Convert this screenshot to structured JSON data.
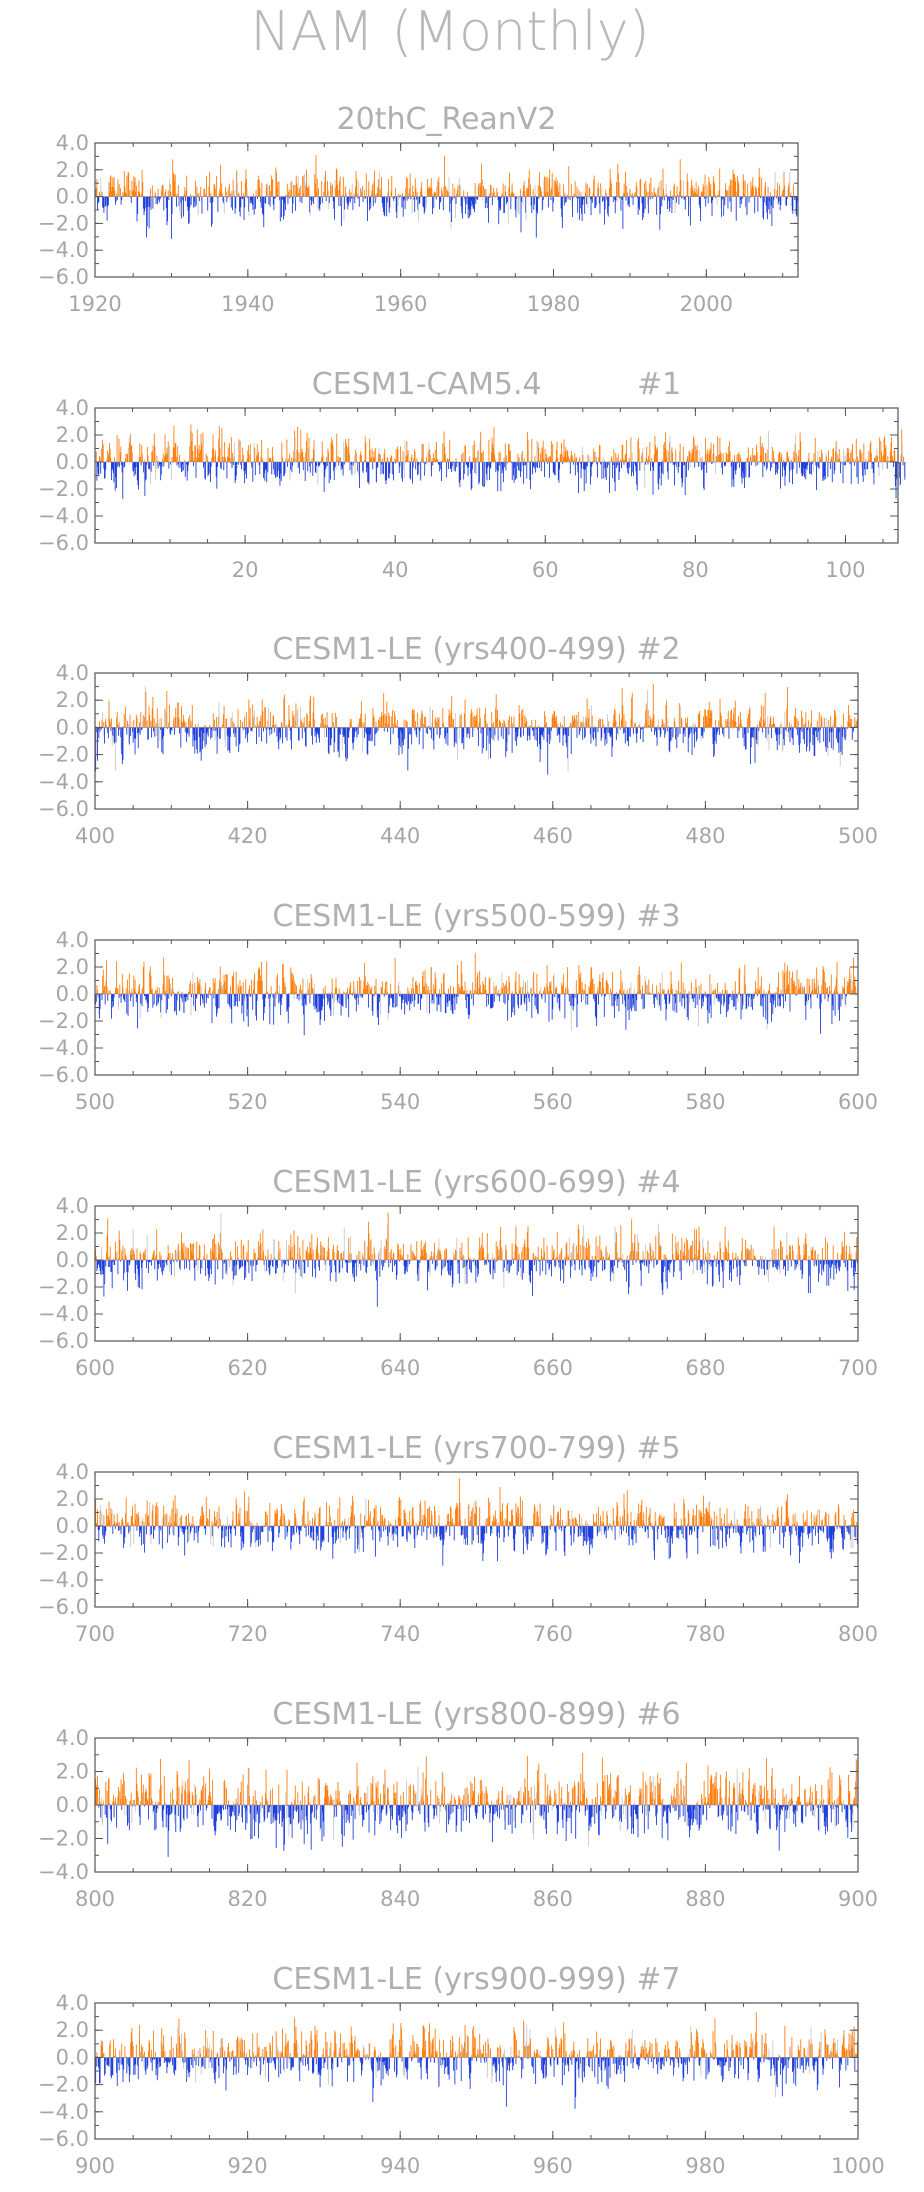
{
  "figure": {
    "title": "NAM (Monthly)"
  },
  "colors": {
    "positive": "#ff7f0e",
    "negative": "#1f3fdc",
    "faint": "#c8c8c8"
  },
  "chart_data": [
    {
      "type": "bar",
      "title": "20thC_ReanV2",
      "xlim": [
        1920,
        2012
      ],
      "ylim": [
        -6.0,
        4.0
      ],
      "x_ticks": [
        "1920",
        "1940",
        "1960",
        "1980",
        "2000"
      ],
      "y_ticks": [
        "4.0",
        "2.0",
        "0.0",
        "-2.0",
        "-4.0",
        "-6.0"
      ],
      "series_values": "monthly NAM index values, positive in orange, negative in blue",
      "x_range_years": [
        1920,
        2012
      ],
      "num_months": 1104,
      "seed": 11
    },
    {
      "type": "bar",
      "title": "CESM1-CAM5.4          #1",
      "xlim": [
        0,
        107
      ],
      "ylim": [
        -6.0,
        4.0
      ],
      "x_ticks": [
        "20",
        "40",
        "60",
        "80",
        "100"
      ],
      "y_ticks": [
        "4.0",
        "2.0",
        "0.0",
        "-2.0",
        "-4.0",
        "-6.0"
      ],
      "x_range_years": [
        0,
        107
      ],
      "num_months": 1284,
      "seed": 23
    },
    {
      "type": "bar",
      "title": "CESM1-LE (yrs400-499) #2",
      "xlim": [
        400,
        500
      ],
      "ylim": [
        -6.0,
        4.0
      ],
      "x_ticks": [
        "400",
        "420",
        "440",
        "460",
        "480",
        "500"
      ],
      "y_ticks": [
        "4.0",
        "2.0",
        "0.0",
        "-2.0",
        "-4.0",
        "-6.0"
      ],
      "x_range_years": [
        400,
        499
      ],
      "num_months": 1200,
      "seed": 37
    },
    {
      "type": "bar",
      "title": "CESM1-LE (yrs500-599) #3",
      "xlim": [
        500,
        600
      ],
      "ylim": [
        -6.0,
        4.0
      ],
      "x_ticks": [
        "500",
        "520",
        "540",
        "560",
        "580",
        "600"
      ],
      "y_ticks": [
        "4.0",
        "2.0",
        "0.0",
        "-2.0",
        "-4.0",
        "-6.0"
      ],
      "x_range_years": [
        500,
        599
      ],
      "num_months": 1200,
      "seed": 41
    },
    {
      "type": "bar",
      "title": "CESM1-LE (yrs600-699) #4",
      "xlim": [
        600,
        700
      ],
      "ylim": [
        -6.0,
        4.0
      ],
      "x_ticks": [
        "600",
        "620",
        "640",
        "660",
        "680",
        "700"
      ],
      "y_ticks": [
        "4.0",
        "2.0",
        "0.0",
        "-2.0",
        "-4.0",
        "-6.0"
      ],
      "x_range_years": [
        600,
        699
      ],
      "num_months": 1200,
      "seed": 53
    },
    {
      "type": "bar",
      "title": "CESM1-LE (yrs700-799) #5",
      "xlim": [
        700,
        800
      ],
      "ylim": [
        -6.0,
        4.0
      ],
      "x_ticks": [
        "700",
        "720",
        "740",
        "760",
        "780",
        "800"
      ],
      "y_ticks": [
        "4.0",
        "2.0",
        "0.0",
        "-2.0",
        "-4.0",
        "-6.0"
      ],
      "x_range_years": [
        700,
        799
      ],
      "num_months": 1200,
      "seed": 67
    },
    {
      "type": "bar",
      "title": "CESM1-LE (yrs800-899) #6",
      "xlim": [
        800,
        900
      ],
      "ylim": [
        -4.0,
        4.0
      ],
      "x_ticks": [
        "800",
        "820",
        "840",
        "860",
        "880",
        "900"
      ],
      "y_ticks": [
        "4.0",
        "2.0",
        "0.0",
        "-2.0",
        "-4.0"
      ],
      "x_range_years": [
        800,
        899
      ],
      "num_months": 1200,
      "seed": 71
    },
    {
      "type": "bar",
      "title": "CESM1-LE (yrs900-999) #7",
      "xlim": [
        900,
        1000
      ],
      "ylim": [
        -6.0,
        4.0
      ],
      "x_ticks": [
        "900",
        "920",
        "940",
        "960",
        "980",
        "1000"
      ],
      "y_ticks": [
        "4.0",
        "2.0",
        "0.0",
        "-2.0",
        "-4.0",
        "-6.0"
      ],
      "x_range_years": [
        900,
        999
      ],
      "num_months": 1200,
      "seed": 89
    }
  ]
}
